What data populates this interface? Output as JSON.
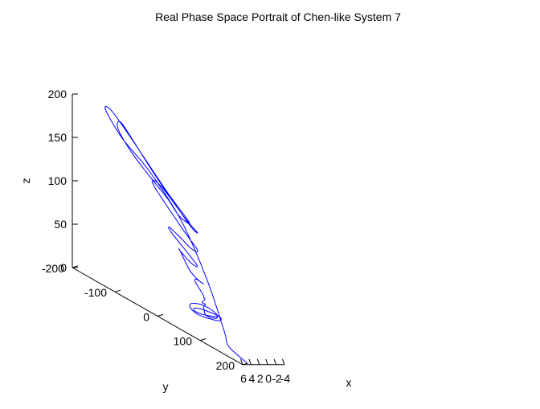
{
  "chart_data": {
    "type": "line",
    "title": "Real Phase Space Portrait of Chen-like System 7",
    "xlabel": "x",
    "ylabel": "y",
    "zlabel": "z",
    "xlim": [
      -4,
      6
    ],
    "ylim": [
      -200,
      200
    ],
    "zlim": [
      0,
      200
    ],
    "x_ticks": [
      "-4",
      "-2",
      "0",
      "2",
      "4",
      "6"
    ],
    "y_ticks": [
      "-200",
      "-100",
      "0",
      "100",
      "200"
    ],
    "z_ticks": [
      "0",
      "50",
      "100",
      "150",
      "200"
    ],
    "grid": false,
    "series": [
      {
        "color": "#0000ff",
        "points": [
          [
            -0.8,
            75,
            20
          ],
          [
            -0.5,
            50,
            15
          ],
          [
            -0.3,
            30,
            13
          ],
          [
            -0.6,
            20,
            14
          ],
          [
            -1.1,
            25,
            16
          ],
          [
            -1.5,
            45,
            18
          ],
          [
            -1.3,
            75,
            20
          ],
          [
            -0.7,
            80,
            17
          ],
          [
            -0.2,
            60,
            14
          ],
          [
            0.0,
            35,
            12
          ],
          [
            -0.3,
            15,
            14
          ],
          [
            -0.9,
            10,
            17
          ],
          [
            -1.4,
            20,
            20
          ],
          [
            -1.6,
            40,
            22
          ],
          [
            -1.4,
            65,
            21
          ],
          [
            -0.9,
            70,
            17
          ],
          [
            -0.5,
            50,
            15
          ],
          [
            -1.0,
            40,
            22
          ],
          [
            -0.9,
            45,
            26
          ],
          [
            -0.6,
            40,
            27
          ],
          [
            -1.1,
            42,
            31
          ],
          [
            -0.7,
            43,
            33
          ],
          [
            -1.0,
            39,
            35
          ],
          [
            -1.5,
            15,
            44
          ],
          [
            -1.3,
            20,
            48
          ],
          [
            -1.0,
            40,
            48
          ],
          [
            -1.1,
            25,
            49
          ],
          [
            -1.7,
            0,
            53
          ],
          [
            -2.0,
            -25,
            68
          ],
          [
            -1.4,
            -20,
            70
          ],
          [
            -1.0,
            10,
            64
          ],
          [
            -1.3,
            20,
            65
          ],
          [
            -2.2,
            -45,
            82
          ],
          [
            -2.1,
            -52,
            88
          ],
          [
            -1.5,
            -20,
            85
          ],
          [
            -1.2,
            10,
            80
          ],
          [
            -1.5,
            20,
            82
          ],
          [
            -2.0,
            -20,
            95
          ],
          [
            -2.7,
            -90,
            122
          ],
          [
            -2.6,
            -95,
            130
          ],
          [
            -2.0,
            -70,
            130
          ],
          [
            -1.3,
            -30,
            120
          ],
          [
            -1.1,
            10,
            105
          ],
          [
            -1.5,
            20,
            102
          ],
          [
            -2.2,
            -20,
            110
          ],
          [
            -2.9,
            -90,
            135
          ],
          [
            -3.5,
            -150,
            160
          ],
          [
            -4.0,
            -185,
            172
          ],
          [
            -3.9,
            -190,
            163
          ],
          [
            -2.9,
            -150,
            148
          ],
          [
            -2.0,
            -100,
            135
          ],
          [
            -1.4,
            -50,
            122
          ],
          [
            -1.2,
            -20,
            110
          ],
          [
            -1.6,
            0,
            108
          ],
          [
            -2.6,
            -60,
            125
          ],
          [
            -3.7,
            -150,
            158
          ],
          [
            -4.4,
            -210,
            178
          ],
          [
            -4.5,
            -225,
            175
          ],
          [
            -3.4,
            -175,
            156
          ],
          [
            -2.1,
            -100,
            140
          ],
          [
            -1.1,
            -20,
            110
          ],
          [
            -0.3,
            30,
            80
          ],
          [
            0.4,
            70,
            50
          ],
          [
            1.2,
            100,
            25
          ],
          [
            2.0,
            120,
            12
          ],
          [
            2.6,
            130,
            5
          ],
          [
            3.5,
            150,
            3
          ],
          [
            5.0,
            200,
            2
          ]
        ]
      }
    ]
  }
}
